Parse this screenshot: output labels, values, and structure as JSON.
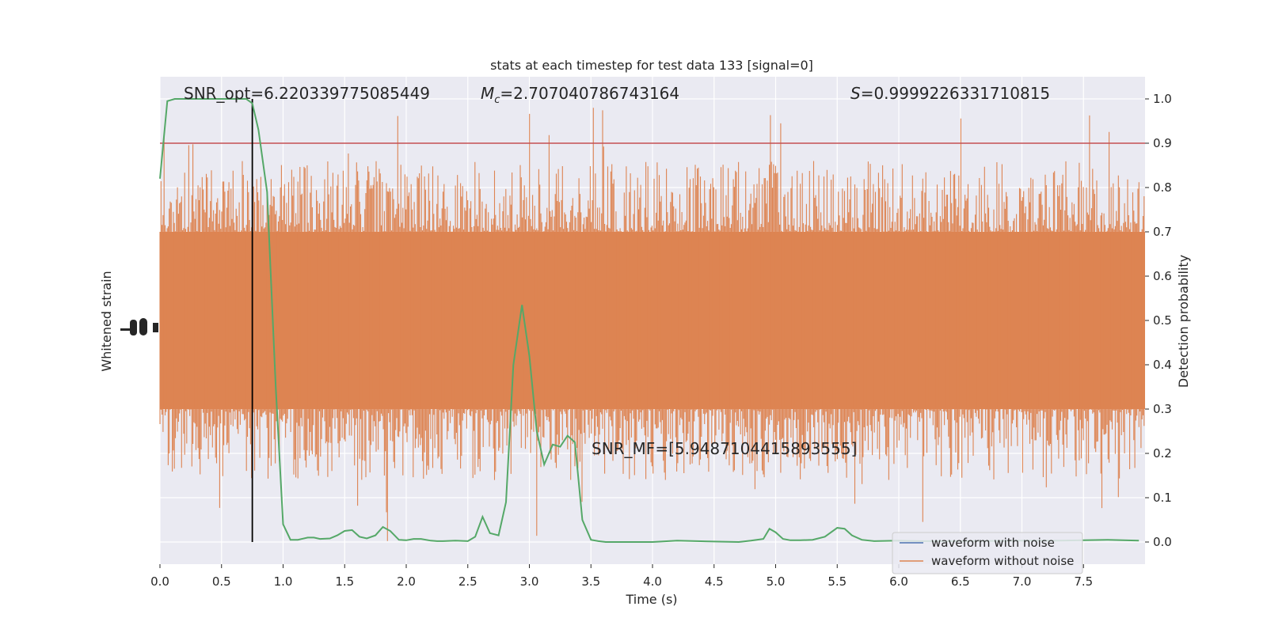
{
  "chart_data": {
    "type": "line",
    "title": "stats at each timestep for test data 133 [signal=0]",
    "xlabel": "Time (s)",
    "ylabel_left": "Whitened strain",
    "ylabel_right": "Detection probability",
    "xlim": [
      0.0,
      8.0
    ],
    "ylim_right": [
      -0.05,
      1.05
    ],
    "x_ticks": [
      "0.0",
      "0.5",
      "1.0",
      "1.5",
      "2.0",
      "2.5",
      "3.0",
      "3.5",
      "4.0",
      "4.5",
      "5.0",
      "5.5",
      "6.0",
      "6.5",
      "7.0",
      "7.5"
    ],
    "x_tick_values": [
      0,
      0.5,
      1,
      1.5,
      2,
      2.5,
      3,
      3.5,
      4,
      4.5,
      5,
      5.5,
      6,
      6.5,
      7,
      7.5
    ],
    "y_right_ticks": [
      "0.0",
      "0.1",
      "0.2",
      "0.3",
      "0.4",
      "0.5",
      "0.6",
      "0.7",
      "0.8",
      "0.9",
      "1.0"
    ],
    "y_right_tick_values": [
      0,
      0.1,
      0.2,
      0.3,
      0.4,
      0.5,
      0.6,
      0.7,
      0.8,
      0.9,
      1.0
    ],
    "grid": true,
    "legend_position": "lower-right",
    "annotations": {
      "snr_opt": "SNR_opt=6.220339775085449",
      "mc_symbol": "M",
      "mc_sub": "c",
      "mc_value": "=2.707040786743164",
      "s_symbol": "S",
      "s_value": "=0.9999226331710815",
      "snr_mf": "SNR_MF=[5.9487104415893555]"
    },
    "threshold": 0.9,
    "marker_time": 0.75,
    "series": [
      {
        "name": "waveform with noise",
        "color": "#4c72b0",
        "values": []
      },
      {
        "name": "waveform without noise",
        "color": "#dd8452",
        "band_center": 0.5,
        "band_halfwidth": 0.2
      },
      {
        "color": "#55a868",
        "x": [
          0,
          0.06,
          0.12,
          0.2,
          0.3,
          0.4,
          0.5,
          0.6,
          0.7,
          0.75,
          0.8,
          0.87,
          0.94,
          1.0,
          1.06,
          1.12,
          1.2,
          1.25,
          1.3,
          1.38,
          1.44,
          1.5,
          1.56,
          1.62,
          1.68,
          1.75,
          1.81,
          1.87,
          1.94,
          2.0,
          2.06,
          2.12,
          2.2,
          2.25,
          2.3,
          2.4,
          2.5,
          2.56,
          2.62,
          2.68,
          2.75,
          2.81,
          2.87,
          2.94,
          3.0,
          3.06,
          3.12,
          3.19,
          3.25,
          3.31,
          3.37,
          3.43,
          3.5,
          3.56,
          3.62,
          3.75,
          4.0,
          4.2,
          4.5,
          4.7,
          4.8,
          4.9,
          4.95,
          5.0,
          5.06,
          5.12,
          5.2,
          5.3,
          5.4,
          5.5,
          5.56,
          5.62,
          5.7,
          5.8,
          6.0,
          6.2,
          6.5,
          7.0,
          7.3,
          7.5,
          7.7,
          7.95
        ],
        "values": [
          0.82,
          0.995,
          1.0,
          1.0,
          1.0,
          1.0,
          1.0,
          1.0,
          1.0,
          0.99,
          0.93,
          0.79,
          0.35,
          0.04,
          0.005,
          0.005,
          0.01,
          0.01,
          0.007,
          0.008,
          0.015,
          0.025,
          0.027,
          0.012,
          0.008,
          0.015,
          0.034,
          0.025,
          0.005,
          0.004,
          0.007,
          0.007,
          0.003,
          0.002,
          0.002,
          0.003,
          0.002,
          0.012,
          0.057,
          0.02,
          0.015,
          0.09,
          0.4,
          0.535,
          0.42,
          0.25,
          0.175,
          0.22,
          0.215,
          0.24,
          0.225,
          0.05,
          0.005,
          0.002,
          0.0,
          0.0,
          0.0,
          0.003,
          0.001,
          0.0,
          0.003,
          0.007,
          0.03,
          0.022,
          0.007,
          0.004,
          0.004,
          0.005,
          0.012,
          0.032,
          0.03,
          0.015,
          0.005,
          0.002,
          0.003,
          0.002,
          0.002,
          0.003,
          0.003,
          0.004,
          0.005,
          0.003
        ]
      }
    ],
    "threshold_color": "#c44e52",
    "marker_color": "#000000",
    "background": "#eaeaf2"
  }
}
